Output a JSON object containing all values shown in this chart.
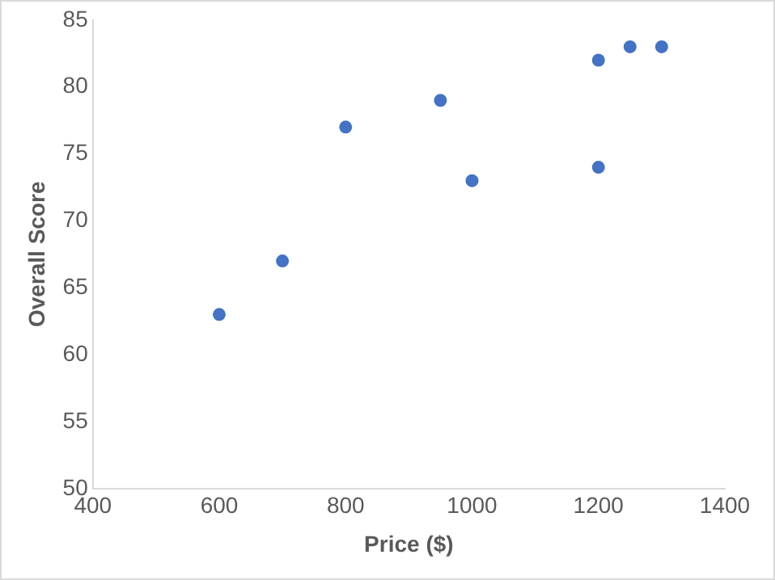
{
  "chart_data": {
    "type": "scatter",
    "xlabel": "Price ($)",
    "ylabel": "Overall Score",
    "x": [
      600,
      700,
      800,
      950,
      1000,
      1200,
      1200,
      1250,
      1300
    ],
    "series": [
      {
        "color": "#4472c4",
        "values": [
          63,
          67,
          77,
          79,
          73,
          82,
          74,
          83,
          83
        ]
      }
    ],
    "xlim": [
      400,
      1400
    ],
    "xticks": [
      400,
      600,
      800,
      1000,
      1200,
      1400
    ],
    "ylim": [
      50,
      85
    ],
    "yticks": [
      50,
      55,
      60,
      65,
      70,
      75,
      80,
      85
    ],
    "grid": false,
    "legend": false,
    "marker": "circle"
  }
}
